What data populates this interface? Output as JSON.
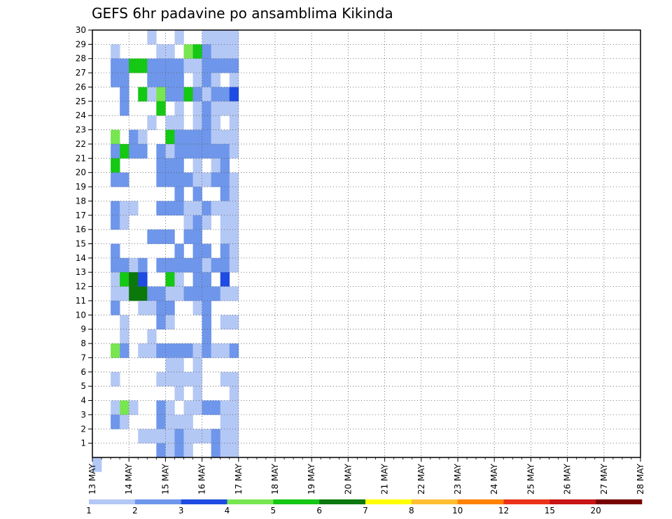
{
  "chart_data": {
    "type": "heatmap",
    "title": "GEFS 6hr padavine po ansamblima Kikinda",
    "xlabel": "",
    "ylabel": "",
    "x_ticks": [
      "13 MAY",
      "14 MAY",
      "15 MAY",
      "16 MAY",
      "17 MAY",
      "18 MAY",
      "19 MAY",
      "20 MAY",
      "21 MAY",
      "22 MAY",
      "23 MAY",
      "24 MAY",
      "25 MAY",
      "26 MAY",
      "27 MAY",
      "28 MAY"
    ],
    "x_range": [
      "13 MAY 00Z",
      "28 MAY 00Z"
    ],
    "x_step_hours": 6,
    "y_ticks": [
      1,
      2,
      3,
      4,
      5,
      6,
      7,
      8,
      9,
      10,
      11,
      12,
      13,
      14,
      15,
      16,
      17,
      18,
      19,
      20,
      21,
      22,
      23,
      24,
      25,
      26,
      27,
      28,
      29,
      30
    ],
    "y_range": [
      0,
      30
    ],
    "grid": true,
    "legend_placement": "bottom",
    "legend": {
      "labels": [
        "1",
        "2",
        "3",
        "4",
        "5",
        "6",
        "7",
        "8",
        "10",
        "12",
        "15",
        "20"
      ],
      "colors": [
        "#b4c8f5",
        "#6e96eb",
        "#1e4be1",
        "#78e650",
        "#14c814",
        "#0a780a",
        "#ffff00",
        "#ffbe32",
        "#ff8200",
        "#eb3219",
        "#c81414",
        "#780000"
      ]
    },
    "cells_note": "each cell: [step index from 13 MAY 00Z in 6h steps, ensemble member, colour class 0-11]",
    "cells": [
      [
        0,
        0,
        0
      ],
      [
        2,
        29,
        0
      ],
      [
        2,
        28,
        1
      ],
      [
        2,
        27,
        1
      ],
      [
        2,
        23,
        3
      ],
      [
        2,
        22,
        1
      ],
      [
        2,
        21,
        4
      ],
      [
        2,
        20,
        1
      ],
      [
        2,
        18,
        1
      ],
      [
        2,
        17,
        1
      ],
      [
        2,
        15,
        1
      ],
      [
        2,
        14,
        1
      ],
      [
        2,
        13,
        0
      ],
      [
        2,
        12,
        0
      ],
      [
        2,
        11,
        1
      ],
      [
        2,
        8,
        3
      ],
      [
        2,
        6,
        0
      ],
      [
        2,
        4,
        0
      ],
      [
        2,
        3,
        1
      ],
      [
        3,
        28,
        1
      ],
      [
        3,
        27,
        1
      ],
      [
        3,
        26,
        1
      ],
      [
        3,
        25,
        1
      ],
      [
        3,
        22,
        4
      ],
      [
        3,
        20,
        1
      ],
      [
        3,
        18,
        0
      ],
      [
        3,
        17,
        0
      ],
      [
        3,
        14,
        1
      ],
      [
        3,
        13,
        4
      ],
      [
        3,
        12,
        0
      ],
      [
        3,
        10,
        0
      ],
      [
        3,
        9,
        0
      ],
      [
        3,
        8,
        1
      ],
      [
        3,
        4,
        3
      ],
      [
        3,
        3,
        0
      ],
      [
        4,
        28,
        4
      ],
      [
        4,
        23,
        1
      ],
      [
        4,
        22,
        1
      ],
      [
        4,
        18,
        0
      ],
      [
        4,
        14,
        0
      ],
      [
        4,
        13,
        5
      ],
      [
        4,
        12,
        5
      ],
      [
        4,
        4,
        0
      ],
      [
        5,
        28,
        4
      ],
      [
        5,
        26,
        4
      ],
      [
        5,
        23,
        0
      ],
      [
        5,
        22,
        1
      ],
      [
        5,
        14,
        1
      ],
      [
        5,
        13,
        2
      ],
      [
        5,
        12,
        5
      ],
      [
        5,
        11,
        0
      ],
      [
        5,
        8,
        0
      ],
      [
        5,
        2,
        0
      ],
      [
        6,
        30,
        0
      ],
      [
        6,
        28,
        1
      ],
      [
        6,
        27,
        1
      ],
      [
        6,
        26,
        0
      ],
      [
        6,
        24,
        0
      ],
      [
        6,
        16,
        1
      ],
      [
        6,
        12,
        1
      ],
      [
        6,
        11,
        0
      ],
      [
        6,
        9,
        0
      ],
      [
        6,
        8,
        0
      ],
      [
        6,
        2,
        0
      ],
      [
        7,
        29,
        0
      ],
      [
        7,
        28,
        1
      ],
      [
        7,
        27,
        1
      ],
      [
        7,
        26,
        3
      ],
      [
        7,
        25,
        4
      ],
      [
        7,
        22,
        1
      ],
      [
        7,
        21,
        1
      ],
      [
        7,
        20,
        1
      ],
      [
        7,
        18,
        1
      ],
      [
        7,
        16,
        1
      ],
      [
        7,
        14,
        1
      ],
      [
        7,
        12,
        1
      ],
      [
        7,
        11,
        1
      ],
      [
        7,
        10,
        1
      ],
      [
        7,
        8,
        1
      ],
      [
        7,
        6,
        0
      ],
      [
        7,
        4,
        1
      ],
      [
        7,
        3,
        1
      ],
      [
        7,
        2,
        0
      ],
      [
        7,
        1,
        1
      ],
      [
        8,
        29,
        0
      ],
      [
        8,
        28,
        1
      ],
      [
        8,
        27,
        1
      ],
      [
        8,
        26,
        1
      ],
      [
        8,
        24,
        0
      ],
      [
        8,
        23,
        4
      ],
      [
        8,
        22,
        0
      ],
      [
        8,
        21,
        1
      ],
      [
        8,
        20,
        1
      ],
      [
        8,
        18,
        1
      ],
      [
        8,
        16,
        1
      ],
      [
        8,
        14,
        1
      ],
      [
        8,
        13,
        4
      ],
      [
        8,
        12,
        0
      ],
      [
        8,
        11,
        1
      ],
      [
        8,
        10,
        0
      ],
      [
        8,
        8,
        1
      ],
      [
        8,
        7,
        0
      ],
      [
        8,
        6,
        0
      ],
      [
        8,
        4,
        0
      ],
      [
        8,
        3,
        0
      ],
      [
        8,
        2,
        0
      ],
      [
        8,
        1,
        0
      ],
      [
        9,
        30,
        0
      ],
      [
        9,
        28,
        1
      ],
      [
        9,
        27,
        1
      ],
      [
        9,
        26,
        1
      ],
      [
        9,
        25,
        0
      ],
      [
        9,
        24,
        0
      ],
      [
        9,
        23,
        1
      ],
      [
        9,
        22,
        1
      ],
      [
        9,
        21,
        1
      ],
      [
        9,
        20,
        1
      ],
      [
        9,
        19,
        1
      ],
      [
        9,
        18,
        1
      ],
      [
        9,
        15,
        1
      ],
      [
        9,
        14,
        1
      ],
      [
        9,
        13,
        0
      ],
      [
        9,
        12,
        0
      ],
      [
        9,
        8,
        1
      ],
      [
        9,
        7,
        0
      ],
      [
        9,
        6,
        0
      ],
      [
        9,
        5,
        0
      ],
      [
        9,
        3,
        0
      ],
      [
        9,
        2,
        1
      ],
      [
        9,
        1,
        1
      ],
      [
        10,
        29,
        3
      ],
      [
        10,
        28,
        0
      ],
      [
        10,
        26,
        4
      ],
      [
        10,
        23,
        1
      ],
      [
        10,
        22,
        1
      ],
      [
        10,
        20,
        1
      ],
      [
        10,
        18,
        0
      ],
      [
        10,
        17,
        0
      ],
      [
        10,
        16,
        1
      ],
      [
        10,
        14,
        1
      ],
      [
        10,
        12,
        1
      ],
      [
        10,
        8,
        1
      ],
      [
        10,
        6,
        0
      ],
      [
        10,
        4,
        0
      ],
      [
        10,
        3,
        0
      ],
      [
        10,
        2,
        0
      ],
      [
        10,
        1,
        0
      ],
      [
        11,
        29,
        4
      ],
      [
        11,
        28,
        0
      ],
      [
        11,
        27,
        0
      ],
      [
        11,
        26,
        1
      ],
      [
        11,
        25,
        0
      ],
      [
        11,
        24,
        0
      ],
      [
        11,
        23,
        1
      ],
      [
        11,
        22,
        1
      ],
      [
        11,
        21,
        0
      ],
      [
        11,
        20,
        0
      ],
      [
        11,
        19,
        1
      ],
      [
        11,
        18,
        0
      ],
      [
        11,
        17,
        1
      ],
      [
        11,
        16,
        1
      ],
      [
        11,
        15,
        1
      ],
      [
        11,
        14,
        1
      ],
      [
        11,
        13,
        1
      ],
      [
        11,
        12,
        1
      ],
      [
        11,
        11,
        0
      ],
      [
        11,
        8,
        0
      ],
      [
        11,
        7,
        0
      ],
      [
        11,
        6,
        0
      ],
      [
        11,
        5,
        0
      ],
      [
        11,
        4,
        0
      ],
      [
        11,
        2,
        0
      ],
      [
        12,
        30,
        0
      ],
      [
        12,
        29,
        1
      ],
      [
        12,
        28,
        1
      ],
      [
        12,
        27,
        1
      ],
      [
        12,
        26,
        0
      ],
      [
        12,
        25,
        1
      ],
      [
        12,
        24,
        1
      ],
      [
        12,
        23,
        1
      ],
      [
        12,
        22,
        1
      ],
      [
        12,
        20,
        0
      ],
      [
        12,
        18,
        1
      ],
      [
        12,
        17,
        0
      ],
      [
        12,
        15,
        1
      ],
      [
        12,
        14,
        0
      ],
      [
        12,
        13,
        1
      ],
      [
        12,
        12,
        1
      ],
      [
        12,
        11,
        1
      ],
      [
        12,
        10,
        1
      ],
      [
        12,
        9,
        1
      ],
      [
        12,
        8,
        1
      ],
      [
        12,
        4,
        1
      ],
      [
        12,
        2,
        0
      ],
      [
        13,
        30,
        0
      ],
      [
        13,
        29,
        0
      ],
      [
        13,
        28,
        1
      ],
      [
        13,
        27,
        0
      ],
      [
        13,
        26,
        1
      ],
      [
        13,
        25,
        0
      ],
      [
        13,
        24,
        0
      ],
      [
        13,
        23,
        0
      ],
      [
        13,
        22,
        1
      ],
      [
        13,
        21,
        0
      ],
      [
        13,
        20,
        1
      ],
      [
        13,
        18,
        0
      ],
      [
        13,
        14,
        1
      ],
      [
        13,
        12,
        1
      ],
      [
        13,
        8,
        0
      ],
      [
        13,
        4,
        1
      ],
      [
        13,
        2,
        1
      ],
      [
        13,
        1,
        1
      ],
      [
        14,
        30,
        0
      ],
      [
        14,
        29,
        0
      ],
      [
        14,
        28,
        1
      ],
      [
        14,
        26,
        1
      ],
      [
        14,
        25,
        0
      ],
      [
        14,
        23,
        0
      ],
      [
        14,
        22,
        1
      ],
      [
        14,
        21,
        1
      ],
      [
        14,
        20,
        1
      ],
      [
        14,
        19,
        1
      ],
      [
        14,
        18,
        0
      ],
      [
        14,
        17,
        0
      ],
      [
        14,
        16,
        0
      ],
      [
        14,
        15,
        1
      ],
      [
        14,
        14,
        1
      ],
      [
        14,
        13,
        2
      ],
      [
        14,
        12,
        0
      ],
      [
        14,
        10,
        0
      ],
      [
        14,
        8,
        0
      ],
      [
        14,
        6,
        0
      ],
      [
        14,
        4,
        0
      ],
      [
        14,
        3,
        0
      ],
      [
        14,
        2,
        0
      ],
      [
        14,
        1,
        0
      ],
      [
        15,
        30,
        0
      ],
      [
        15,
        29,
        0
      ],
      [
        15,
        28,
        1
      ],
      [
        15,
        27,
        0
      ],
      [
        15,
        26,
        2
      ],
      [
        15,
        25,
        0
      ],
      [
        15,
        24,
        0
      ],
      [
        15,
        23,
        0
      ],
      [
        15,
        22,
        0
      ],
      [
        15,
        20,
        0
      ],
      [
        15,
        19,
        0
      ],
      [
        15,
        18,
        0
      ],
      [
        15,
        17,
        0
      ],
      [
        15,
        16,
        0
      ],
      [
        15,
        15,
        0
      ],
      [
        15,
        14,
        0
      ],
      [
        15,
        12,
        0
      ],
      [
        15,
        10,
        0
      ],
      [
        15,
        8,
        1
      ],
      [
        15,
        6,
        0
      ],
      [
        15,
        5,
        0
      ],
      [
        15,
        4,
        0
      ],
      [
        15,
        3,
        0
      ],
      [
        15,
        2,
        0
      ],
      [
        15,
        1,
        0
      ]
    ]
  }
}
